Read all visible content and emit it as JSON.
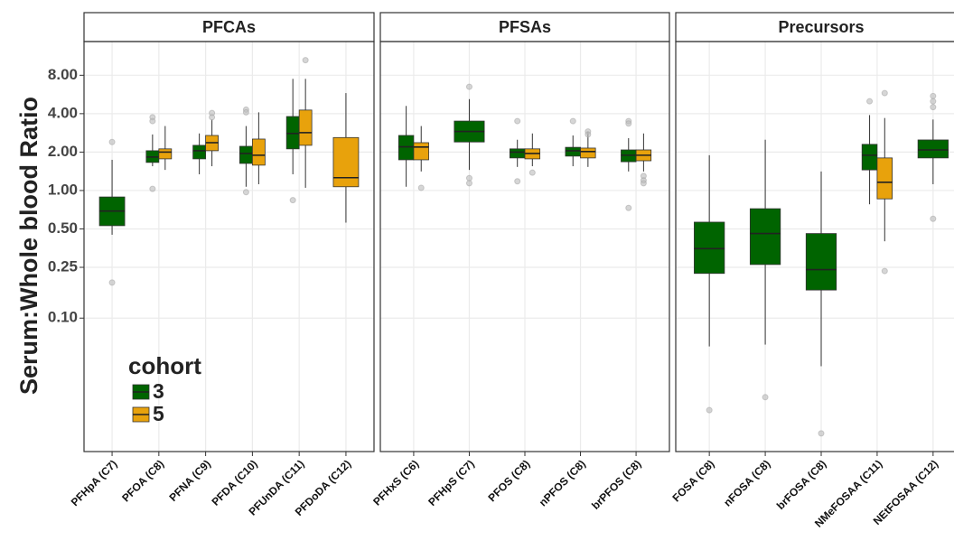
{
  "chart_data": {
    "type": "box",
    "ylabel": "Serum:Whole blood Ratio",
    "ylog": true,
    "ylim": [
      0.009,
      14.7
    ],
    "yticks": [
      {
        "value": 8,
        "label": "8.00"
      },
      {
        "value": 4,
        "label": "4.00"
      },
      {
        "value": 2,
        "label": "2.00"
      },
      {
        "value": 1,
        "label": "1.00"
      },
      {
        "value": 0.5,
        "label": "0.50"
      },
      0.25,
      {
        "value": 0.1,
        "label": "0.10"
      }
    ],
    "grid": true,
    "legend_title": "cohort",
    "legend_position": "bottom-left",
    "series": [
      {
        "name": "3",
        "color": "#006400"
      },
      {
        "name": "5",
        "color": "#e8a20c"
      }
    ],
    "panels": [
      {
        "title": "PFCAs",
        "categories": [
          "PFHpA (C7)",
          "PFOA (C8)",
          "PFNA (C9)",
          "PFDA (C10)",
          "PFUnDA (C11)",
          "PFDoDA (C12)"
        ],
        "series": [
          {
            "values": [
              {
                "low": 0.45,
                "q1": 0.53,
                "median": 0.69,
                "q3": 0.89,
                "high": 1.74,
                "outliers": [
                  2.4,
                  0.19
                ]
              },
              {
                "low": 1.55,
                "q1": 1.66,
                "median": 1.83,
                "q3": 2.05,
                "high": 2.75,
                "outliers": [
                  3.75,
                  3.5,
                  1.03
                ]
              },
              {
                "low": 1.34,
                "q1": 1.77,
                "median": 2.05,
                "q3": 2.26,
                "high": 2.8,
                "outliers": []
              },
              {
                "low": 1.07,
                "q1": 1.63,
                "median": 1.95,
                "q3": 2.22,
                "high": 3.2,
                "outliers": [
                  4.3,
                  4.1,
                  0.97
                ]
              },
              {
                "low": 1.34,
                "q1": 2.12,
                "median": 2.8,
                "q3": 3.8,
                "high": 7.5,
                "outliers": [
                  0.84
                ]
              },
              null
            ]
          },
          {
            "values": [
              null,
              {
                "low": 1.45,
                "q1": 1.77,
                "median": 2.0,
                "q3": 2.12,
                "high": 3.2,
                "outliers": []
              },
              {
                "low": 1.55,
                "q1": 2.05,
                "median": 2.37,
                "q3": 2.7,
                "high": 3.6,
                "outliers": [
                  4.05,
                  3.75
                ]
              },
              {
                "low": 1.12,
                "q1": 1.58,
                "median": 1.89,
                "q3": 2.53,
                "high": 4.1,
                "outliers": []
              },
              {
                "low": 1.05,
                "q1": 2.26,
                "median": 2.84,
                "q3": 4.27,
                "high": 7.5,
                "outliers": [
                  10.5
                ]
              },
              {
                "low": 0.56,
                "q1": 1.07,
                "median": 1.26,
                "q3": 2.6,
                "high": 5.8,
                "outliers": []
              }
            ]
          }
        ]
      },
      {
        "title": "PFSAs",
        "categories": [
          "PFHxS (C6)",
          "PFHpS (C7)",
          "PFOS (C8)",
          "nPFOS (C8)",
          "brPFOS (C8)"
        ],
        "series": [
          {
            "values": [
              {
                "low": 1.07,
                "q1": 1.74,
                "median": 2.2,
                "q3": 2.7,
                "high": 4.6,
                "outliers": []
              },
              {
                "low": 1.45,
                "q1": 2.4,
                "median": 2.9,
                "q3": 3.5,
                "high": 5.2,
                "outliers": [
                  6.5,
                  1.25,
                  1.14
                ]
              },
              {
                "low": 1.53,
                "q1": 1.8,
                "median": 2.0,
                "q3": 2.12,
                "high": 2.5,
                "outliers": [
                  3.5,
                  1.18
                ]
              },
              {
                "low": 1.55,
                "q1": 1.86,
                "median": 2.05,
                "q3": 2.18,
                "high": 2.7,
                "outliers": [
                  3.5
                ]
              },
              {
                "low": 1.41,
                "q1": 1.68,
                "median": 1.89,
                "q3": 2.08,
                "high": 2.57,
                "outliers": [
                  3.5,
                  3.35,
                  0.73
                ]
              }
            ]
          },
          {
            "values": [
              {
                "low": 1.41,
                "q1": 1.74,
                "median": 2.19,
                "q3": 2.37,
                "high": 3.2,
                "outliers": [
                  1.05
                ]
              },
              null,
              {
                "low": 1.55,
                "q1": 1.77,
                "median": 1.95,
                "q3": 2.12,
                "high": 2.8,
                "outliers": [
                  1.38
                ]
              },
              {
                "low": 1.53,
                "q1": 1.8,
                "median": 2.02,
                "q3": 2.15,
                "high": 2.9,
                "outliers": [
                  2.9,
                  2.75
                ]
              },
              {
                "low": 1.41,
                "q1": 1.71,
                "median": 1.89,
                "q3": 2.08,
                "high": 2.8,
                "outliers": [
                  1.3,
                  1.2,
                  1.14
                ]
              }
            ]
          }
        ]
      },
      {
        "title": "Precursors",
        "categories": [
          "FOSA (C8)",
          "nFOSA (C8)",
          "brFOSA (C8)",
          "NMeFOSAA (C11)",
          "NEtFOSAA (C12)"
        ],
        "series": [
          {
            "values": [
              {
                "low": 0.06,
                "q1": 0.224,
                "median": 0.35,
                "q3": 0.565,
                "high": 1.89,
                "outliers": [
                  0.019
                ]
              },
              {
                "low": 0.062,
                "q1": 0.263,
                "median": 0.46,
                "q3": 0.72,
                "high": 2.5,
                "outliers": [
                  0.024
                ]
              },
              {
                "low": 0.042,
                "q1": 0.166,
                "median": 0.24,
                "q3": 0.46,
                "high": 1.41,
                "outliers": [
                  0.0125
                ]
              },
              {
                "low": 0.78,
                "q1": 1.45,
                "median": 1.89,
                "q3": 2.3,
                "high": 3.9,
                "outliers": [
                  5.0
                ]
              },
              {
                "low": 1.12,
                "q1": 1.8,
                "median": 2.08,
                "q3": 2.49,
                "high": 3.6,
                "outliers": [
                  5.5,
                  5.0,
                  4.5,
                  0.6
                ]
              }
            ]
          },
          {
            "values": [
              null,
              null,
              null,
              {
                "low": 0.4,
                "q1": 0.86,
                "median": 1.16,
                "q3": 1.8,
                "high": 3.7,
                "outliers": [
                  5.8,
                  0.234
                ]
              },
              null
            ]
          }
        ]
      }
    ]
  }
}
